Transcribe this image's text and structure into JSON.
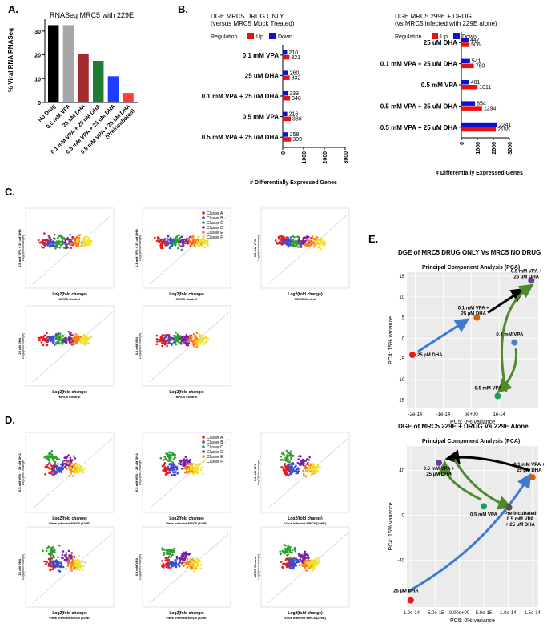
{
  "panels": {
    "A": "A.",
    "B": "B.",
    "C": "C.",
    "D": "D.",
    "E": "E."
  },
  "chart_data": [
    {
      "id": "A",
      "type": "bar",
      "title": "RNASeq MRC5 with 229E",
      "ylabel": "% Viral RNA RNASeq",
      "ylim": [
        0,
        35
      ],
      "yticks": [
        0,
        10,
        20,
        30
      ],
      "categories": [
        "No Drug",
        "0.5 mM VPA",
        "25 uM DHA",
        "0.1 mM VPA + 25 uM DHA",
        "0.5 mM VPA + 25 uM DHA",
        "0.5 mM VPA + 25 uM DHA (Preincubated)"
      ],
      "values": [
        32.5,
        32.5,
        20.5,
        17.5,
        11,
        4
      ],
      "colors": [
        "#000000",
        "#a6a6a6",
        "#a52a2a",
        "#1e7d32",
        "#1e3cff",
        "#ff3b3b"
      ]
    },
    {
      "id": "B1",
      "type": "bar",
      "orientation": "horizontal",
      "title": "DGE MRC5 DRUG ONLY",
      "subtitle": "(versus MRC5 Mock Treated)",
      "legend_title": "Regulation",
      "legend": [
        "Up",
        "Down"
      ],
      "xlabel": "# Differentially Expressed Genes",
      "xlim": [
        0,
        3000
      ],
      "xticks": [
        0,
        1000,
        2000,
        3000
      ],
      "categories": [
        "0.1 mM VPA",
        "25 uM DHA",
        "0.1 mM VPA + 25 uM DHA",
        "0.5 mM VPA",
        "0.5 mM VPA + 25 uM DHA"
      ],
      "series": [
        {
          "name": "Down",
          "color": "#1010d0",
          "values": [
            210,
            260,
            239,
            216,
            258
          ]
        },
        {
          "name": "Up",
          "color": "#e81010",
          "values": [
            321,
            332,
            348,
            386,
            399
          ]
        }
      ]
    },
    {
      "id": "B2",
      "type": "bar",
      "orientation": "horizontal",
      "title": "DGE MRC5 299E + DRUG",
      "subtitle": "(vs MRC5 infected with 229E alone)",
      "legend_title": "Regulation",
      "legend": [
        "Up",
        "Down"
      ],
      "xlabel": "# Differentially Expressed Genes",
      "xlim": [
        0,
        3000
      ],
      "xticks": [
        0,
        1000,
        2000,
        3000
      ],
      "categories": [
        "25 uM DHA",
        "0.1 mM VPA + 25 uM DHA",
        "0.5 mM VPA",
        "0.5 mM VPA + 25 uM DHA",
        "0.5 mM VPA + 25 uM DHA"
      ],
      "series": [
        {
          "name": "Down",
          "color": "#1010d0",
          "values": [
            447,
            541,
            481,
            854,
            2241
          ]
        },
        {
          "name": "Up",
          "color": "#e81010",
          "values": [
            506,
            780,
            1011,
            1294,
            2155
          ]
        }
      ]
    },
    {
      "id": "E1",
      "type": "scatter",
      "header": "DGE of MRC5 DRUG ONLY Vs MRC5 NO DRUG",
      "title": "Principal Component Analysis (PCA)",
      "xlabel": "PC5: 0% variance",
      "ylabel": "PC4: 15% variance",
      "xlim": [
        -2.3e-14,
        2.4e-14
      ],
      "ylim": [
        -17,
        16
      ],
      "xticks": [
        -2e-14,
        -1e-14,
        0,
        1e-14
      ],
      "xticklabels": [
        "-2e-14",
        "-1e-14",
        "0e+00",
        "1e-14"
      ],
      "yticks": [
        -15,
        -10,
        -5,
        0,
        5,
        10,
        15
      ],
      "points": [
        {
          "label": "25 µM DHA",
          "x": -2.1e-14,
          "y": -4,
          "color": "#e41a1c"
        },
        {
          "label": "0.1 mM VPA + 25 µM DHA",
          "x": 2e-15,
          "y": 5,
          "color": "#d95f02"
        },
        {
          "label": "0.5 mM VPA + 25 µM DHA",
          "x": 2.15e-14,
          "y": 14,
          "color": "#6a3d9a"
        },
        {
          "label": "0.1 mM VPA",
          "x": 1.55e-14,
          "y": -1,
          "color": "#4a7fd0"
        },
        {
          "label": "0.5 mM VPA",
          "x": 9.5e-15,
          "y": -14,
          "color": "#1aa058"
        }
      ]
    },
    {
      "id": "E2",
      "type": "scatter",
      "header": "DGE of MRC5 229E + DRUG Vs 229E Alone",
      "title": "Principal Component Analysis (PCA)",
      "xlabel": "PC5: 0% variance",
      "ylabel": "PC4: 16% variance",
      "xlim": [
        -1.08e-14,
        1.62e-14
      ],
      "ylim": [
        -82,
        62
      ],
      "xticks": [
        -1e-14,
        -5e-15,
        0,
        5e-15,
        1e-14,
        1.5e-14
      ],
      "xticklabels": [
        "-1.0e-14",
        "-5.0e-15",
        "0.00e+00",
        "5.0e-15",
        "1.0e-14",
        "1.5e-14"
      ],
      "yticks": [
        -40,
        0,
        40
      ],
      "points": [
        {
          "label": "25 µM DHA",
          "x": -1e-14,
          "y": -76,
          "color": "#e41a1c"
        },
        {
          "label": "0.5 mM VPA + 25 µM DHA",
          "x": -4.2e-15,
          "y": 47,
          "color": "#6a3d9a"
        },
        {
          "label": "0.1 mM VPA + 25 µM DHA",
          "x": 1.5e-14,
          "y": 34,
          "color": "#d95f02"
        },
        {
          "label": "0.5 mM VPA",
          "x": 5e-15,
          "y": 8,
          "color": "#1aa058"
        },
        {
          "label": "Pre-incubated 0.5 mM VPA + 25 µM DHA",
          "x": 1.02e-14,
          "y": 7,
          "color": "#5a5348"
        }
      ]
    }
  ],
  "scatter_panels": {
    "legend": [
      "Cluster A",
      "Cluster B",
      "Cluster C",
      "Cluster D",
      "Cluster E",
      "Cluster F"
    ],
    "legend_colors": [
      "#e41a1c",
      "#3a4fd0",
      "#2ca02c",
      "#7b1fa2",
      "#ff7f0e",
      "#f0e030"
    ],
    "C_xlabel": "Log2(fold change)",
    "C_xsub": "MRC5 Control",
    "D_xsub": "Virus Infected MRC5 (229E)",
    "ylabel_main": "Log2(fold change)",
    "C_titles": [
      "0.5 mM VPA + 25 uM DHA",
      "0.1 mM VPA + 25 uM DHA",
      "0.5 mM VPA",
      "25 uM DHA",
      "0.1 mM VPA"
    ],
    "D_titles": [
      "0.5 mM VPA + 25 uM DHA",
      "0.5 mM VPA + 25 uM DHA",
      "0.1 mM VPA",
      "25 uM DHA",
      "0.5 mM VPA",
      "MRC5 Control"
    ]
  }
}
